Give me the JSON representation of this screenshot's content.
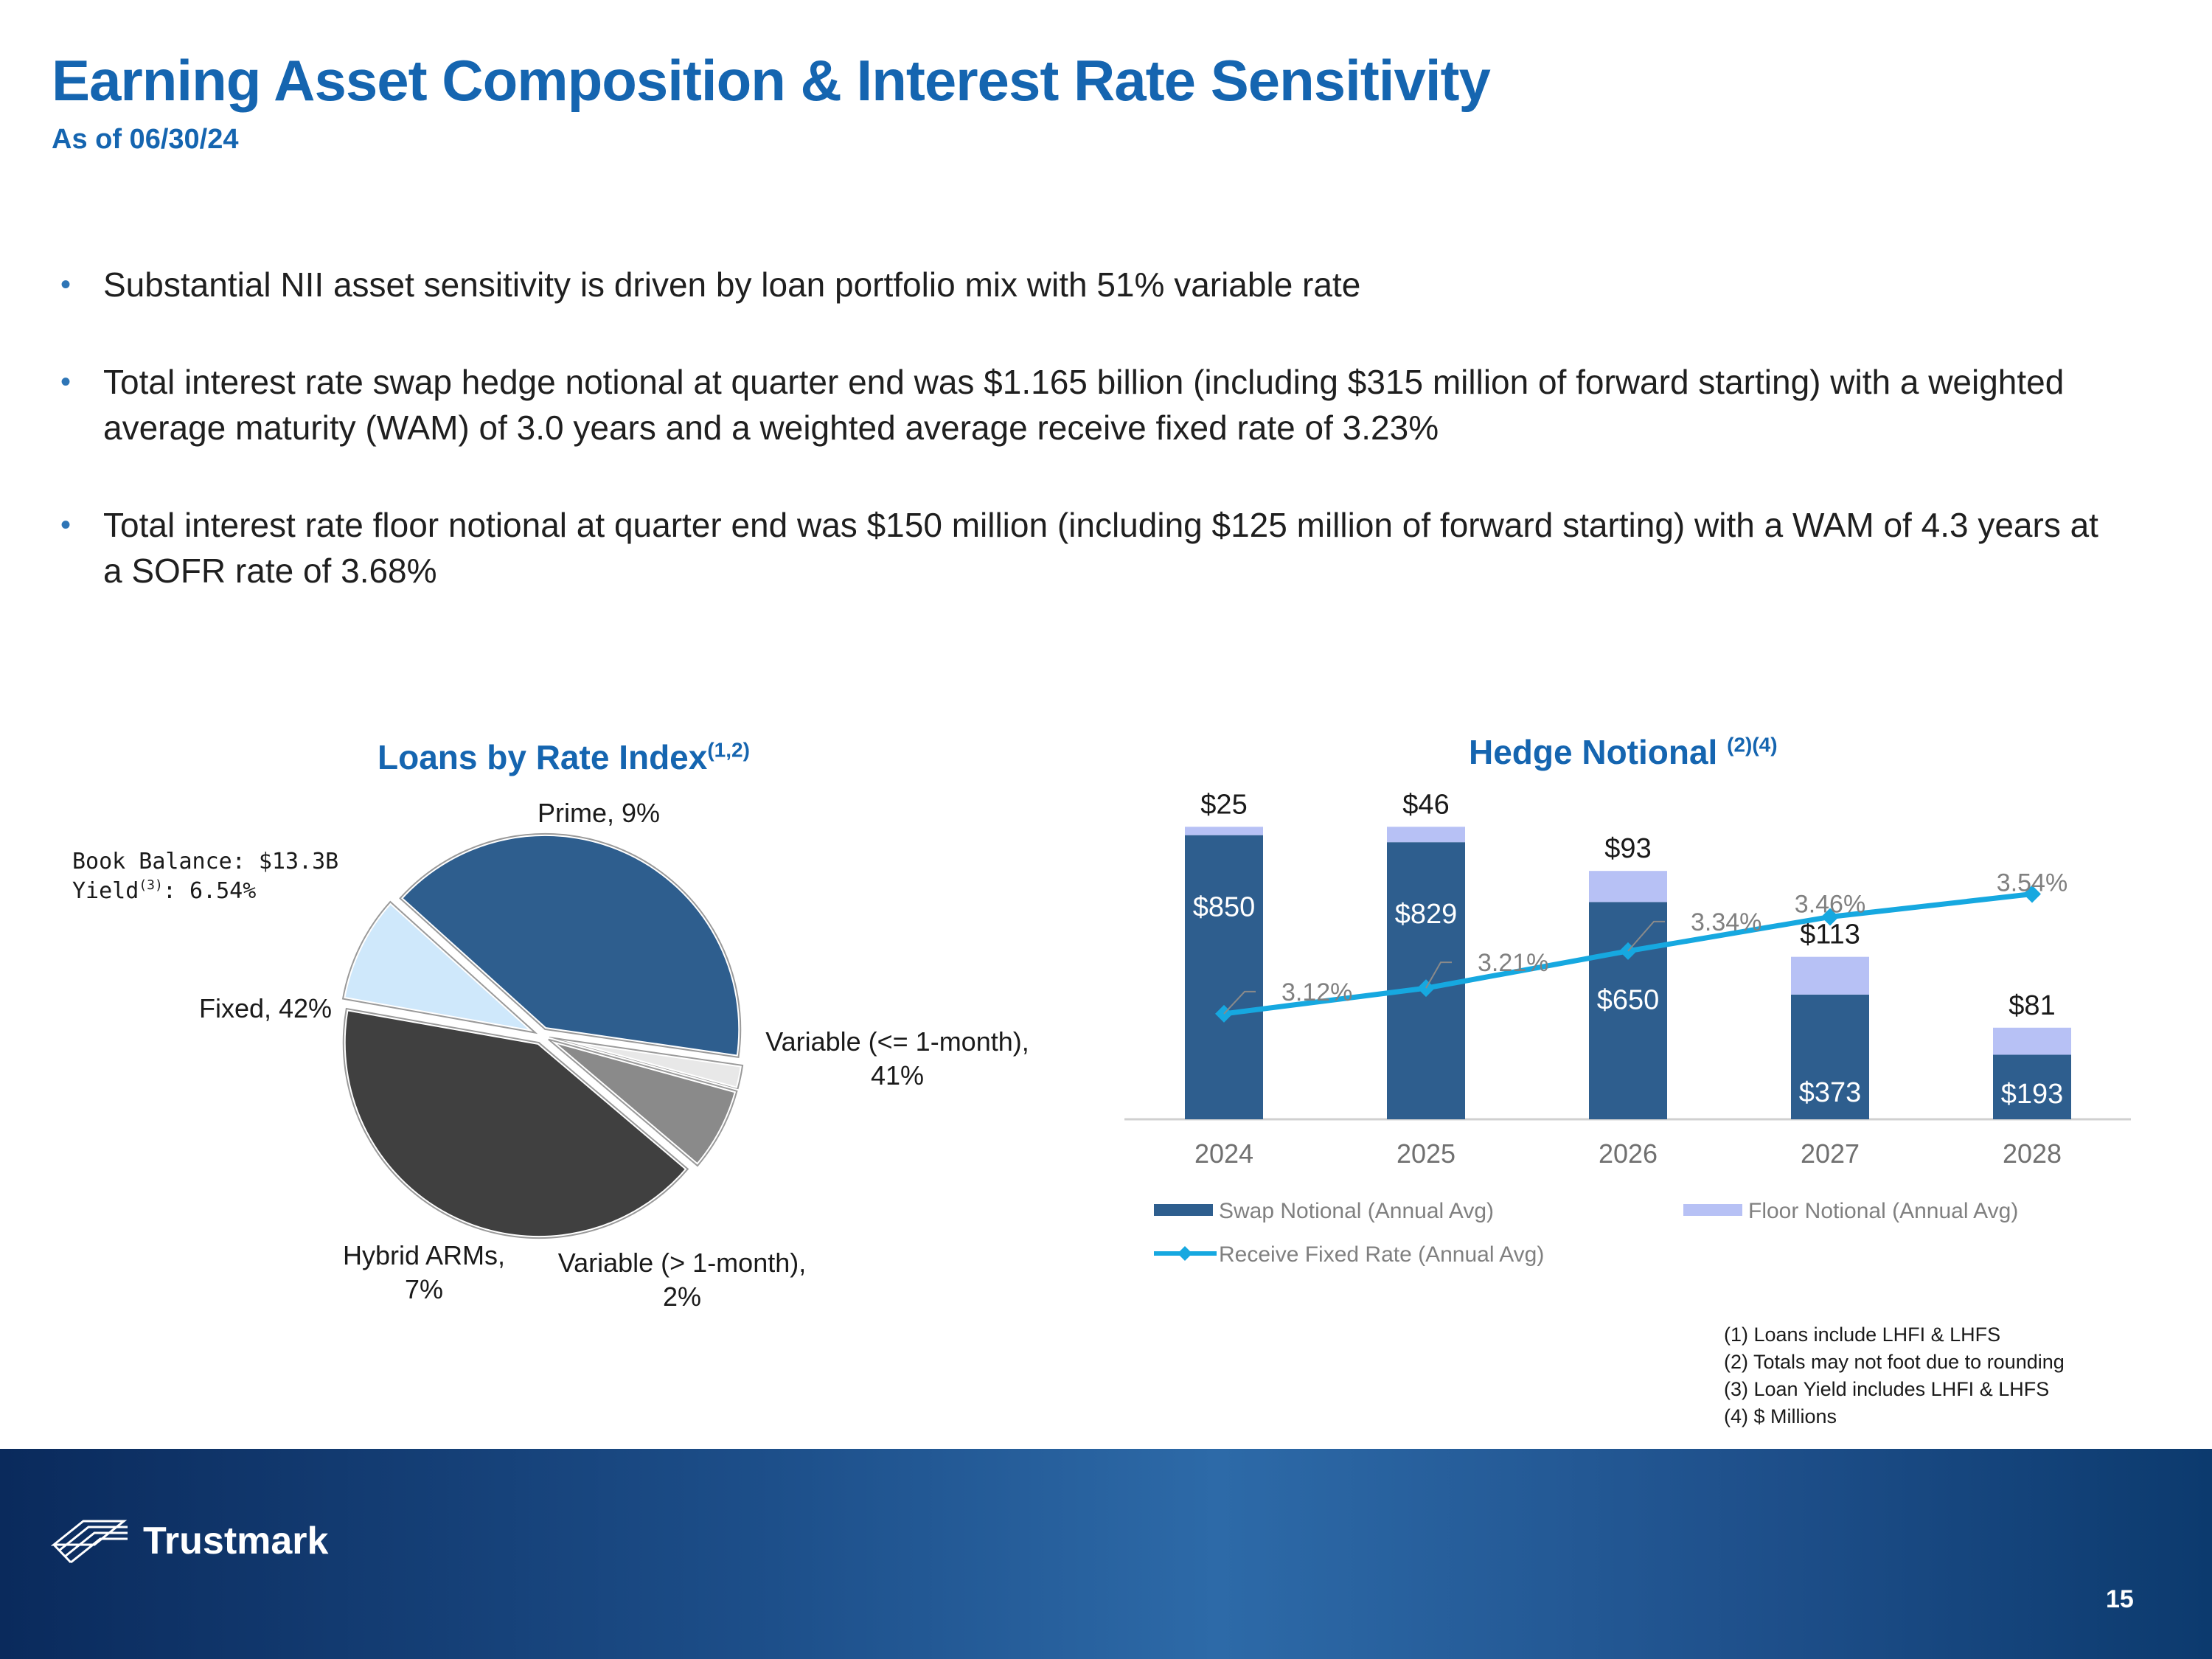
{
  "slide": {
    "title": "Earning Asset Composition & Interest Rate Sensitivity",
    "subtitle": "As of 06/30/24",
    "page_number": "15",
    "brand": "Trustmark"
  },
  "bullets": [
    "Substantial NII asset sensitivity is driven by loan portfolio mix with 51% variable rate",
    "Total interest rate swap hedge notional at quarter end was $1.165 billion (including $315 million of forward starting) with a weighted average maturity (WAM) of 3.0 years and a weighted average receive fixed rate of 3.23%",
    "Total interest rate floor notional at quarter end was $150 million (including $125 million of forward starting) with a WAM of 4.3 years at a SOFR rate of 3.68%"
  ],
  "footnotes": [
    "(1) Loans include LHFI & LHFS",
    "(2) Totals may not foot due to rounding",
    "(3) Loan Yield includes LHFI & LHFS",
    "(4) $ Millions"
  ],
  "chart_data": [
    {
      "type": "pie",
      "title": "Loans by Rate Index",
      "title_superscript": "(1,2)",
      "annotation": {
        "line1": "Book Balance: $13.3B",
        "line2_label": "Yield",
        "line2_sup": "(3)",
        "line2_value": ": 6.54%"
      },
      "slices": [
        {
          "name": "Prime",
          "value": 9,
          "color": "#cfe8fb",
          "label_lines": [
            "Prime, 9%"
          ]
        },
        {
          "name": "Variable (<= 1-month)",
          "value": 41,
          "color": "#2e5e8e",
          "label_lines": [
            "Variable (<= 1-month),",
            "41%"
          ]
        },
        {
          "name": "Variable (> 1-month)",
          "value": 2,
          "color": "#e8e8e8",
          "label_lines": [
            "Variable (> 1-month),",
            "2%"
          ]
        },
        {
          "name": "Hybrid ARMs",
          "value": 7,
          "color": "#8a8a8a",
          "label_lines": [
            "Hybrid ARMs,",
            "7%"
          ]
        },
        {
          "name": "Fixed",
          "value": 42,
          "color": "#404040",
          "label_lines": [
            "Fixed, 42%"
          ]
        }
      ]
    },
    {
      "type": "bar",
      "subtype": "stacked bar + line",
      "title": "Hedge Notional",
      "title_superscript": "(2)(4)",
      "categories": [
        "2024",
        "2025",
        "2026",
        "2027",
        "2028"
      ],
      "series": [
        {
          "name": "Swap Notional (Annual Avg)",
          "values": [
            850,
            829,
            650,
            373,
            193
          ],
          "labels": [
            "$850",
            "$829",
            "$650",
            "$373",
            "$193"
          ],
          "color": "#2e5e8e"
        },
        {
          "name": "Floor Notional (Annual Avg)",
          "values": [
            25,
            46,
            93,
            113,
            81
          ],
          "labels": [
            "$25",
            "$46",
            "$93",
            "$113",
            "$81"
          ],
          "color": "#b7c1f5"
        },
        {
          "name": "Receive Fixed Rate (Annual Avg)",
          "values": [
            3.12,
            3.21,
            3.34,
            3.46,
            3.54
          ],
          "labels": [
            "3.12%",
            "3.21%",
            "3.34%",
            "3.46%",
            "3.54%"
          ],
          "color": "#16a8e0"
        }
      ],
      "ylim": [
        0,
        900
      ],
      "line_ylim": [
        2.9,
        3.65
      ],
      "grid": false,
      "legend_position": "bottom"
    }
  ]
}
